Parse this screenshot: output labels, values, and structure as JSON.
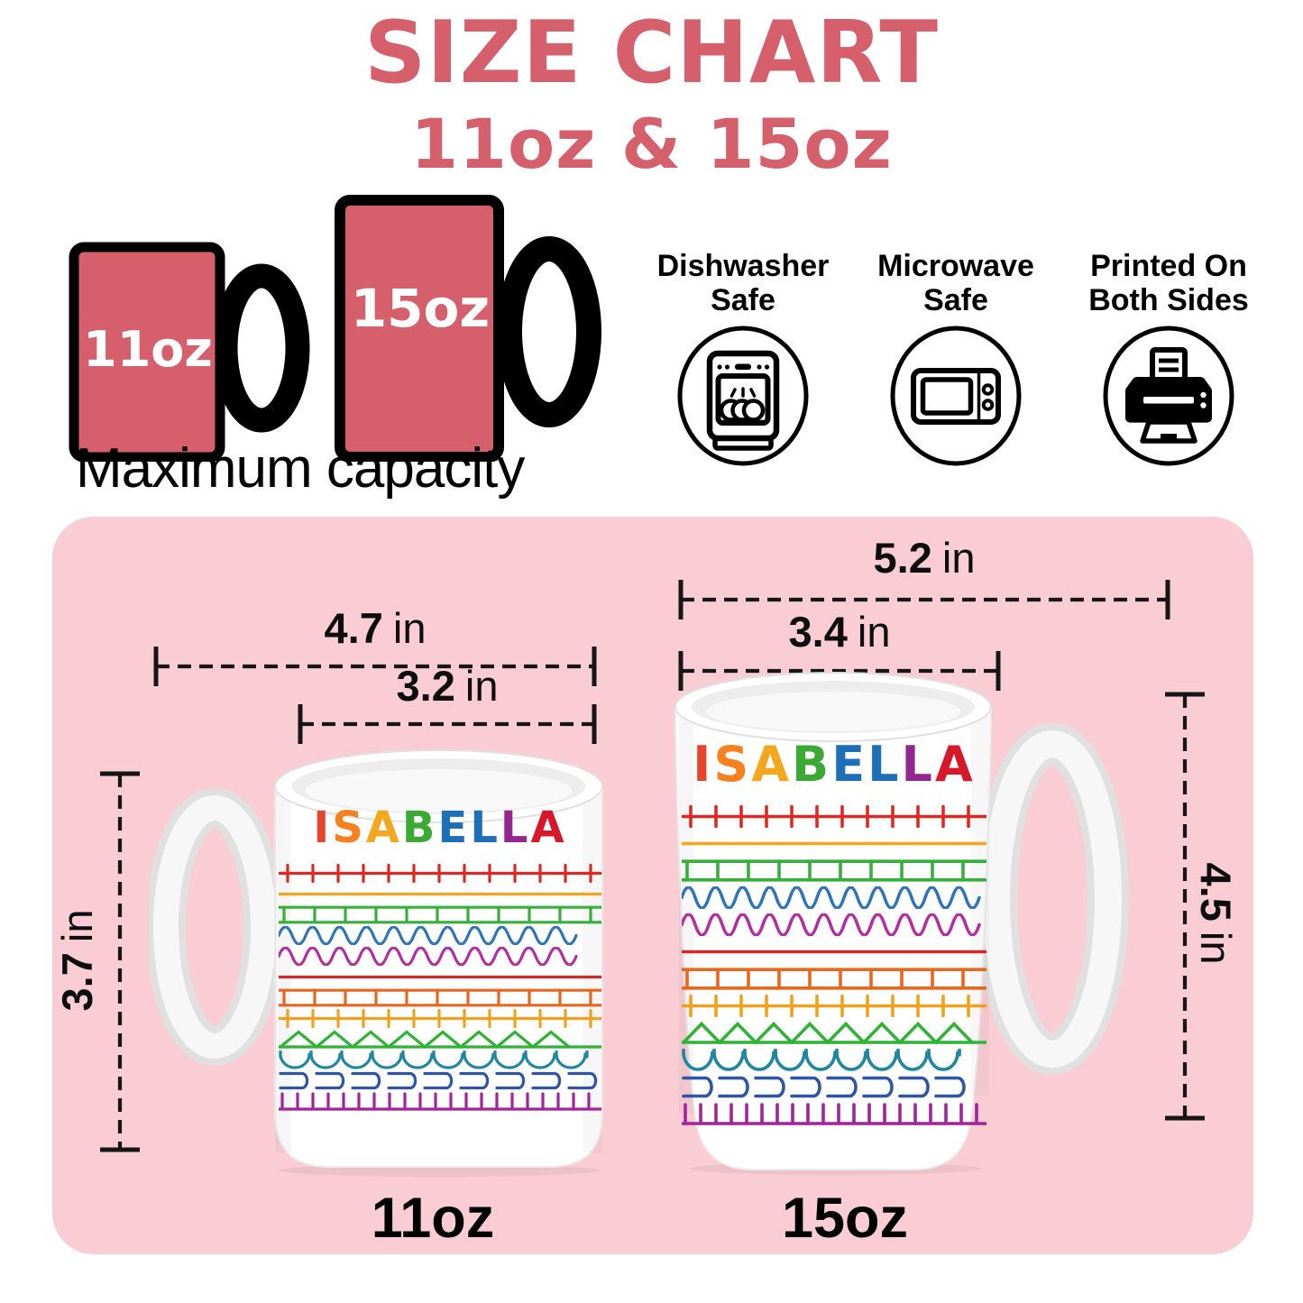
{
  "title": "SIZE CHART",
  "subtitle": "11oz & 15oz",
  "colors": {
    "accent": "#d5606b",
    "panel": "#f9cdd3",
    "ink": "#111111"
  },
  "capacity": {
    "small": "11oz",
    "large": "15oz",
    "caption": "Maximum capacity"
  },
  "features": [
    {
      "line1": "Dishwasher",
      "line2": "Safe"
    },
    {
      "line1": "Microwave",
      "line2": "Safe"
    },
    {
      "line1": "Printed On",
      "line2": "Both Sides"
    }
  ],
  "mug_design": {
    "name": "ISABELLA",
    "letters": [
      {
        "ch": "I",
        "color": "#e8432d"
      },
      {
        "ch": "S",
        "color": "#f5821f"
      },
      {
        "ch": "A",
        "color": "#f2a71c"
      },
      {
        "ch": "B",
        "color": "#3aaa35"
      },
      {
        "ch": "E",
        "color": "#1d70b7"
      },
      {
        "ch": "L",
        "color": "#1d70b7"
      },
      {
        "ch": "L",
        "color": "#93278f"
      },
      {
        "ch": "A",
        "color": "#d7182a"
      }
    ],
    "rows": [
      {
        "type": "railroad",
        "color": "#e02822"
      },
      {
        "type": "line",
        "color": "#f5a41d"
      },
      {
        "type": "ladder",
        "color": "#35b13b"
      },
      {
        "type": "wave",
        "color": "#2e74b8"
      },
      {
        "type": "wave",
        "color": "#b32ea0"
      },
      {
        "type": "line",
        "color": "#d42a24"
      },
      {
        "type": "ladder",
        "color": "#e9661f"
      },
      {
        "type": "railroad",
        "color": "#f0a21e"
      },
      {
        "type": "zigzag",
        "color": "#2eb335"
      },
      {
        "type": "arches",
        "color": "#1f87a0"
      },
      {
        "type": "dshapes",
        "color": "#2e55a8"
      },
      {
        "type": "comb",
        "color": "#a1249c"
      }
    ]
  },
  "dimensions": {
    "large_outer_width": {
      "value": "5.2",
      "unit": "in"
    },
    "large_top_width": {
      "value": "3.4",
      "unit": "in"
    },
    "small_outer_width": {
      "value": "4.7",
      "unit": "in"
    },
    "small_top_width": {
      "value": "3.2",
      "unit": "in"
    },
    "small_height": {
      "value": "3.7",
      "unit": "in"
    },
    "large_height": {
      "value": "4.5",
      "unit": "in"
    }
  },
  "panel_labels": {
    "small": "11oz",
    "large": "15oz"
  }
}
